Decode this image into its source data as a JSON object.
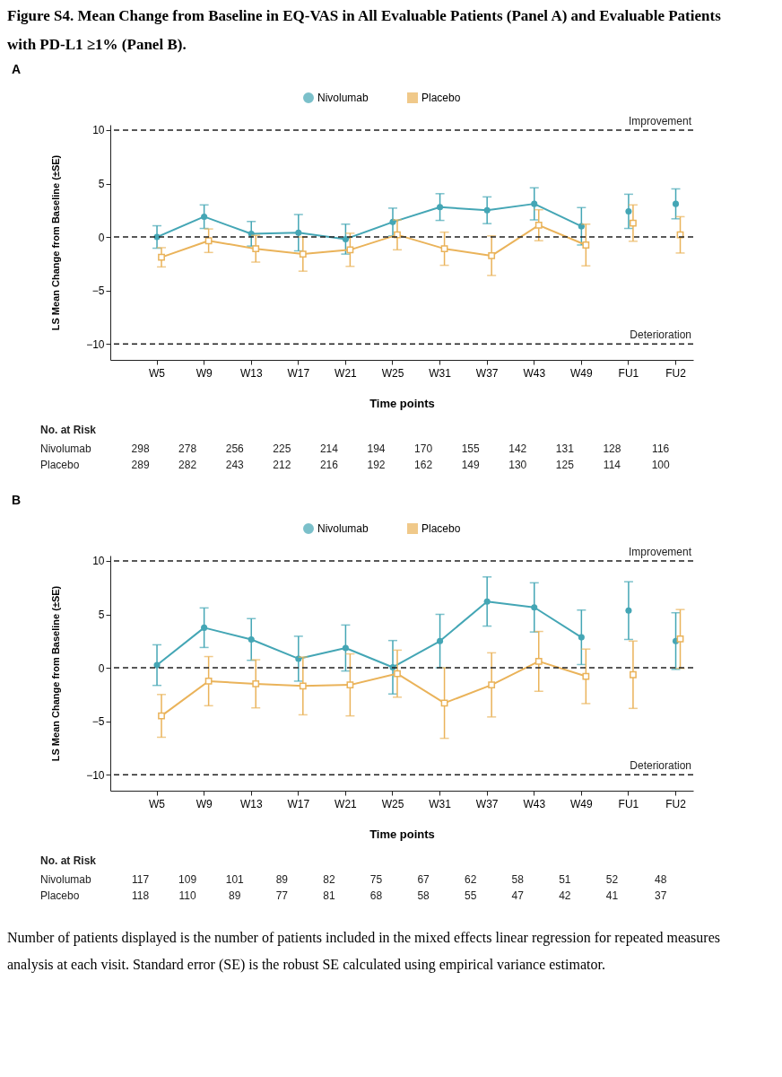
{
  "chart_data": [
    {
      "type": "line",
      "title": "Figure S4. Mean Change from Baseline in EQ-VAS in All Evaluable Patients (Panel A) and Evaluable Patients with PD-L1 ≥1% (Panel B).",
      "subtitle": "A",
      "xlabel": "Time points",
      "ylabel": "LS Mean Change from Baseline (±SE)",
      "categories": [
        "W5",
        "W9",
        "W13",
        "W17",
        "W21",
        "W25",
        "W31",
        "W37",
        "W43",
        "W49",
        "FU1",
        "FU2"
      ],
      "series": [
        {
          "name": "Nivolumab",
          "color": "#44a6b5",
          "marker": "circle",
          "values": [
            0,
            1.9,
            0.3,
            0.4,
            -0.2,
            1.4,
            2.8,
            2.5,
            3.1,
            1.0,
            null,
            null
          ],
          "errors": [
            1.05,
            1.1,
            1.15,
            1.7,
            1.4,
            1.3,
            1.25,
            1.25,
            1.5,
            1.75,
            null,
            null
          ]
        },
        {
          "type": "scatter",
          "color": "#44a6b5",
          "marker": "circle",
          "x": [
            "FU1",
            "FU2"
          ],
          "values": [
            2.4,
            3.1
          ],
          "errors": [
            1.6,
            1.4
          ]
        },
        {
          "name": "Placebo",
          "color": "#eab35a",
          "marker": "square",
          "values": [
            -1.9,
            -0.35,
            -1.1,
            -1.6,
            -1.2,
            0.2,
            -1.1,
            -1.75,
            1.1,
            -0.75,
            null,
            null
          ],
          "errors": [
            0.9,
            1.1,
            1.25,
            1.6,
            1.55,
            1.4,
            1.55,
            1.85,
            1.45,
            1.95,
            null,
            null
          ]
        },
        {
          "type": "scatter",
          "color": "#eab35a",
          "marker": "square",
          "x": [
            "FU1",
            "FU2"
          ],
          "values": [
            1.3,
            0.2
          ],
          "errors": [
            1.7,
            1.7
          ]
        }
      ],
      "ylim": [
        -11.5,
        10.5
      ],
      "yticks": [
        -10,
        -5,
        0,
        5,
        10
      ],
      "grid": false,
      "legend": "top",
      "ref_lines": [
        {
          "axis": "y",
          "value": 10,
          "label": "Improvement",
          "line_style": "dashed",
          "color": "#222222"
        },
        {
          "axis": "y",
          "value": 0,
          "line_style": "dashed",
          "color": "#222222"
        },
        {
          "axis": "y",
          "value": -10,
          "label": "Deterioration",
          "line_style": "dashed",
          "color": "#222222"
        }
      ],
      "annotations": [
        "No. at Risk",
        "Nivolumab 298 278 256 225 214 194 170 155 142 131 128 116",
        "Placebo 289 282 243 212 216 192 162 149 130 125 114 100"
      ]
    },
    {
      "type": "line",
      "subtitle": "B",
      "xlabel": "Time points",
      "ylabel": "LS Mean Change from Baseline (±SE)",
      "categories": [
        "W5",
        "W9",
        "W13",
        "W17",
        "W21",
        "W25",
        "W31",
        "W37",
        "W43",
        "W49",
        "FU1",
        "FU2"
      ],
      "series": [
        {
          "name": "Nivolumab",
          "color": "#44a6b5",
          "marker": "circle",
          "values": [
            0.25,
            3.75,
            2.65,
            0.85,
            1.85,
            0.05,
            2.5,
            6.2,
            5.65,
            2.85,
            null,
            null
          ],
          "errors": [
            1.9,
            1.85,
            1.95,
            2.1,
            2.15,
            2.5,
            2.5,
            2.3,
            2.3,
            2.55,
            null,
            null
          ]
        },
        {
          "type": "scatter",
          "color": "#44a6b5",
          "marker": "circle",
          "x": [
            "FU1",
            "FU2"
          ],
          "values": [
            5.35,
            2.5
          ],
          "errors": [
            2.7,
            2.65
          ]
        },
        {
          "name": "Placebo",
          "color": "#eab35a",
          "marker": "square",
          "values": [
            -4.5,
            -1.25,
            -1.5,
            -1.7,
            -1.6,
            -0.55,
            -3.3,
            -1.6,
            0.6,
            -0.8,
            null,
            null
          ],
          "errors": [
            2.0,
            2.3,
            2.25,
            2.7,
            2.9,
            2.2,
            3.3,
            3.0,
            2.8,
            2.55,
            null,
            null
          ]
        },
        {
          "type": "scatter",
          "color": "#eab35a",
          "marker": "square",
          "x": [
            "FU1",
            "FU2"
          ],
          "values": [
            -0.65,
            2.7
          ],
          "errors": [
            3.15,
            2.75
          ]
        }
      ],
      "ylim": [
        -11.5,
        10.5
      ],
      "yticks": [
        -10,
        -5,
        0,
        5,
        10
      ],
      "grid": false,
      "legend": "top",
      "ref_lines": [
        {
          "axis": "y",
          "value": 10,
          "label": "Improvement",
          "line_style": "dashed",
          "color": "#222222"
        },
        {
          "axis": "y",
          "value": 0,
          "line_style": "dashed",
          "color": "#222222"
        },
        {
          "axis": "y",
          "value": -10,
          "label": "Deterioration",
          "line_style": "dashed",
          "color": "#222222"
        }
      ],
      "annotations": [
        "No. at Risk",
        "Nivolumab 117 109 101 89 82 75 67 62 58 51 52 48",
        "Placebo 118 110 89 77 81 68 58 55 47 42 41 37",
        "Number of patients displayed is the number of patients included in the mixed effects linear regression for repeated measures analysis at each visit. Standard error (SE) is the robust SE calculated using empirical variance estimator."
      ]
    }
  ]
}
